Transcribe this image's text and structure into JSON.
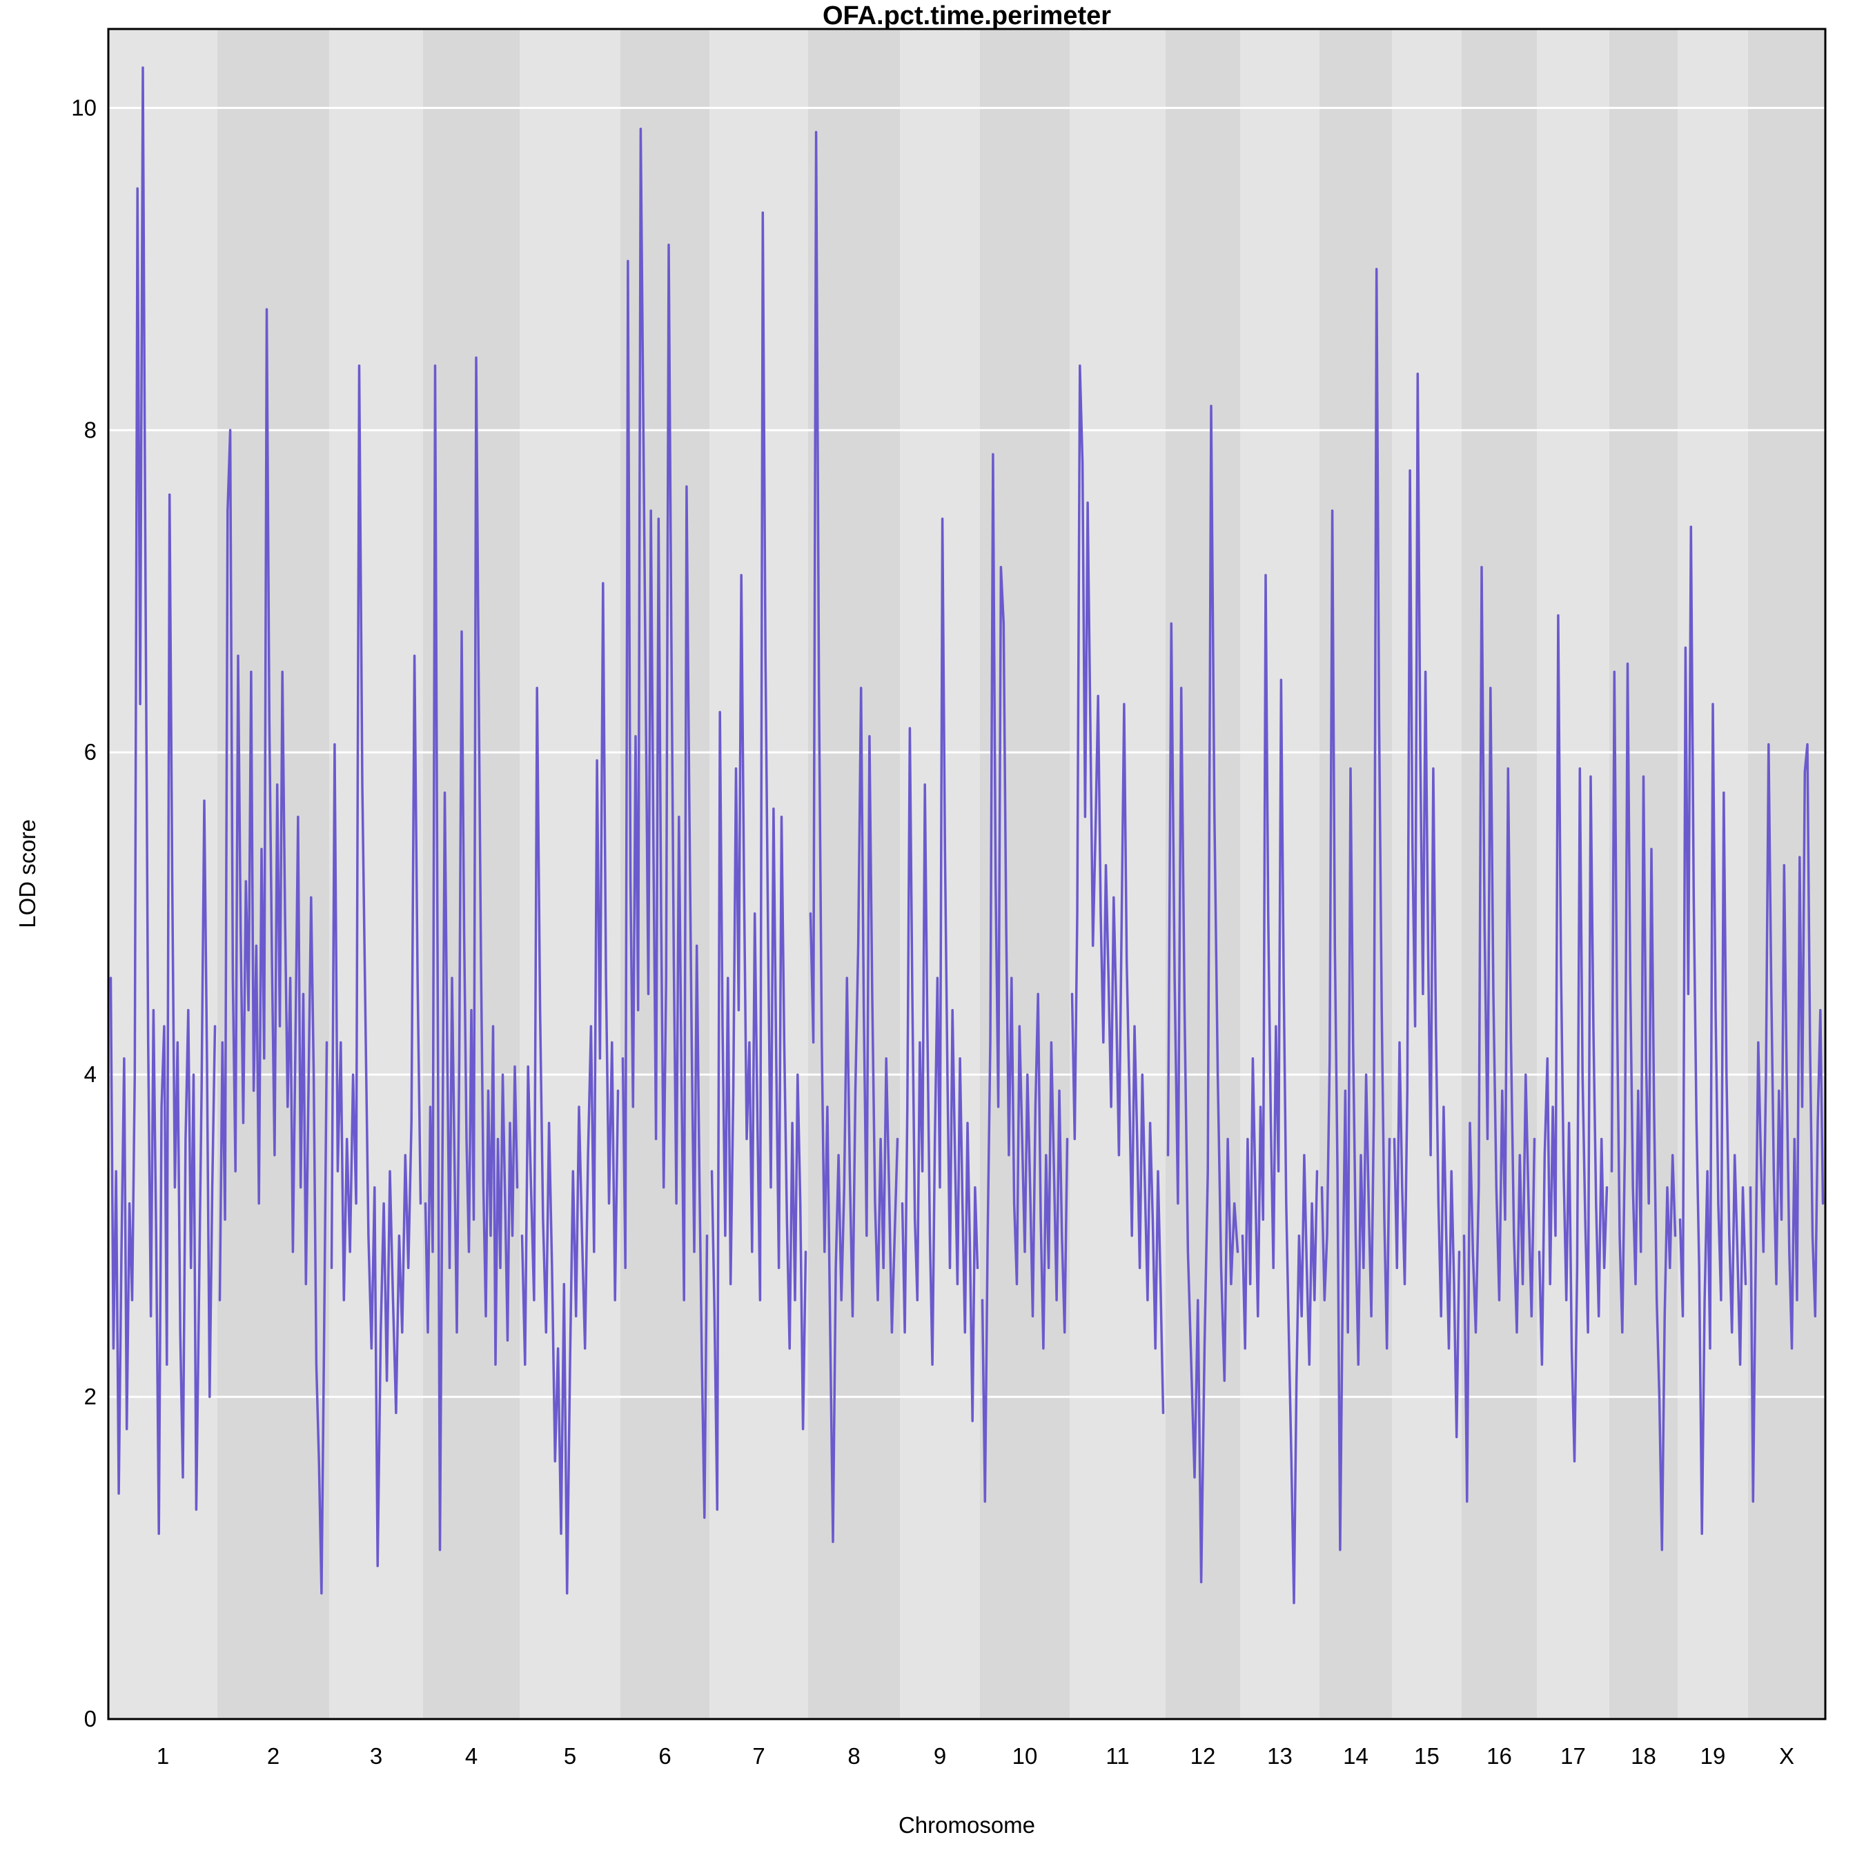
{
  "chart_data": {
    "type": "line",
    "title": "OFA.pct.time.perimeter",
    "xlabel": "Chromosome",
    "ylabel": "LOD score",
    "ylim": [
      0,
      10.49
    ],
    "yticks": [
      0,
      2,
      4,
      6,
      8,
      10
    ],
    "grid": "horizontal white lines at each y tick",
    "legend": "none",
    "line_color": "#6a5acd",
    "band_color_light": "#e4e4e4",
    "band_color_dark": "#d8d8d8",
    "x_band_order": "chromosome bands alternate light/dark starting light at chr 1",
    "chromosomes": [
      {
        "name": "1",
        "rel_width": 158,
        "lod": [
          4.6,
          2.3,
          3.4,
          1.4,
          2.9,
          4.1,
          1.8,
          3.2,
          2.6,
          4.0,
          9.5,
          6.3,
          10.25,
          7.1,
          4.2,
          2.5,
          4.4,
          3.0,
          1.15,
          3.8,
          4.3,
          2.2,
          7.6,
          5.2,
          3.3,
          4.2,
          2.4,
          1.5,
          3.6,
          4.4,
          2.8,
          4.0,
          1.3,
          2.6,
          3.9,
          5.7,
          4.1,
          2.0,
          3.3,
          4.3
        ]
      },
      {
        "name": "2",
        "rel_width": 162,
        "lod": [
          2.6,
          4.2,
          3.1,
          7.5,
          8.0,
          4.6,
          3.4,
          6.6,
          4.9,
          3.7,
          5.2,
          4.4,
          6.5,
          3.9,
          4.8,
          3.2,
          5.4,
          4.1,
          8.75,
          6.2,
          4.7,
          3.5,
          5.8,
          4.3,
          6.5,
          5.0,
          3.8,
          4.6,
          2.9,
          4.2,
          5.6,
          3.3,
          4.5,
          2.7,
          3.9,
          5.1,
          4.0,
          2.2,
          1.6,
          0.78,
          2.4,
          4.2
        ]
      },
      {
        "name": "3",
        "rel_width": 136,
        "lod": [
          2.8,
          6.05,
          3.4,
          4.2,
          2.6,
          3.6,
          2.9,
          4.0,
          3.2,
          8.4,
          5.8,
          4.4,
          3.0,
          2.3,
          3.3,
          0.95,
          2.4,
          3.2,
          2.1,
          3.4,
          2.6,
          1.9,
          3.0,
          2.4,
          3.5,
          2.8,
          3.7,
          6.6,
          4.6,
          3.2
        ]
      },
      {
        "name": "4",
        "rel_width": 140,
        "lod": [
          3.2,
          2.4,
          3.8,
          2.9,
          8.4,
          4.8,
          1.05,
          3.4,
          5.75,
          4.2,
          2.8,
          4.6,
          3.5,
          2.4,
          4.1,
          6.75,
          4.9,
          3.6,
          2.9,
          4.4,
          3.1,
          8.45,
          6.5,
          4.7,
          3.3,
          2.5,
          3.9,
          3.0,
          4.3,
          2.2,
          3.6,
          2.8,
          4.0,
          3.2,
          2.35,
          3.7,
          3.0,
          4.05,
          3.3
        ]
      },
      {
        "name": "5",
        "rel_width": 146,
        "lod": [
          3.0,
          2.2,
          4.05,
          3.3,
          2.6,
          6.4,
          4.4,
          3.1,
          2.4,
          3.7,
          2.8,
          1.6,
          2.3,
          1.15,
          2.7,
          0.78,
          2.2,
          3.4,
          2.5,
          3.8,
          3.0,
          2.3,
          3.5,
          4.3,
          2.9,
          5.95,
          4.1,
          7.05,
          4.6,
          3.2,
          4.2,
          2.6,
          3.9
        ]
      },
      {
        "name": "6",
        "rel_width": 129,
        "lod": [
          4.1,
          2.8,
          9.05,
          5.2,
          3.8,
          6.1,
          4.4,
          9.87,
          8.1,
          6.3,
          4.5,
          7.5,
          5.4,
          3.6,
          7.45,
          5.0,
          3.3,
          4.6,
          9.15,
          6.8,
          4.7,
          3.2,
          5.6,
          4.0,
          2.6,
          7.65,
          5.8,
          4.2,
          2.9,
          4.8,
          3.4,
          2.2,
          1.25,
          3.0
        ]
      },
      {
        "name": "7",
        "rel_width": 143,
        "lod": [
          3.4,
          2.5,
          1.3,
          6.25,
          4.3,
          3.0,
          4.6,
          2.7,
          3.9,
          5.9,
          4.4,
          7.1,
          5.2,
          3.6,
          4.2,
          2.9,
          5.0,
          3.7,
          2.6,
          9.35,
          6.6,
          4.8,
          3.3,
          5.65,
          4.1,
          2.8,
          5.6,
          4.2,
          3.1,
          2.3,
          3.7,
          2.6,
          4.0,
          3.2,
          1.8,
          2.9
        ]
      },
      {
        "name": "8",
        "rel_width": 133,
        "lod": [
          5.0,
          4.2,
          9.85,
          6.4,
          4.2,
          2.9,
          3.8,
          2.4,
          1.1,
          2.8,
          3.5,
          2.6,
          3.3,
          4.6,
          3.4,
          2.5,
          3.9,
          4.8,
          6.4,
          4.4,
          3.0,
          6.1,
          4.5,
          3.2,
          2.6,
          3.6,
          2.8,
          4.1,
          3.3,
          2.4,
          3.0,
          3.6
        ]
      },
      {
        "name": "9",
        "rel_width": 116,
        "lod": [
          3.2,
          2.4,
          3.8,
          6.15,
          4.5,
          3.1,
          2.6,
          4.2,
          3.4,
          5.8,
          4.3,
          3.0,
          2.2,
          3.6,
          4.6,
          3.3,
          7.45,
          5.4,
          4.0,
          2.8,
          4.4,
          3.5,
          2.7,
          4.1,
          3.2,
          2.4,
          3.7,
          2.9,
          1.85,
          3.3,
          2.8
        ]
      },
      {
        "name": "10",
        "rel_width": 130,
        "lod": [
          2.6,
          1.35,
          3.0,
          4.2,
          7.85,
          5.2,
          3.8,
          7.15,
          6.8,
          4.9,
          3.5,
          4.6,
          3.2,
          2.7,
          4.3,
          3.6,
          2.9,
          4.0,
          3.3,
          2.5,
          3.8,
          4.5,
          3.1,
          2.3,
          3.5,
          2.8,
          4.2,
          3.4,
          2.6,
          3.9,
          3.0,
          2.4,
          3.6
        ]
      },
      {
        "name": "11",
        "rel_width": 139,
        "lod": [
          4.5,
          3.6,
          5.0,
          8.4,
          7.8,
          5.6,
          7.55,
          6.2,
          4.8,
          5.5,
          6.35,
          5.0,
          4.2,
          5.3,
          4.6,
          3.8,
          5.1,
          4.4,
          3.5,
          4.9,
          6.3,
          4.7,
          3.9,
          3.0,
          4.3,
          3.6,
          2.8,
          4.0,
          3.3,
          2.6,
          3.7,
          3.1,
          2.3,
          3.4,
          2.7,
          1.9
        ]
      },
      {
        "name": "12",
        "rel_width": 108,
        "lod": [
          3.5,
          6.8,
          4.6,
          3.2,
          6.4,
          4.4,
          2.9,
          2.2,
          1.5,
          2.6,
          0.85,
          2.3,
          3.4,
          8.15,
          5.6,
          4.0,
          2.8,
          2.1,
          3.6,
          2.7,
          3.2,
          2.9
        ]
      },
      {
        "name": "13",
        "rel_width": 115,
        "lod": [
          3.0,
          2.3,
          3.6,
          2.7,
          4.1,
          3.3,
          2.5,
          3.8,
          3.1,
          7.1,
          5.0,
          3.7,
          2.8,
          4.3,
          3.4,
          6.45,
          4.6,
          3.2,
          2.4,
          1.6,
          0.72,
          2.1,
          3.0,
          2.5,
          3.5,
          2.8,
          2.2,
          3.2,
          2.6,
          3.4
        ]
      },
      {
        "name": "14",
        "rel_width": 105,
        "lod": [
          3.3,
          2.6,
          3.0,
          4.1,
          7.5,
          4.8,
          3.4,
          1.05,
          2.7,
          3.9,
          2.4,
          5.9,
          4.2,
          3.0,
          2.2,
          3.5,
          2.8,
          4.0,
          3.2,
          2.5,
          3.8,
          9.0,
          6.2,
          4.4,
          3.1,
          2.3,
          3.6
        ]
      },
      {
        "name": "15",
        "rel_width": 101,
        "lod": [
          3.6,
          2.8,
          4.2,
          3.3,
          2.7,
          3.9,
          7.75,
          5.4,
          4.3,
          8.35,
          6.0,
          4.5,
          6.5,
          4.8,
          3.5,
          5.9,
          4.3,
          3.2,
          2.5,
          3.8,
          3.0,
          2.3,
          3.4,
          2.7,
          1.75,
          2.9
        ]
      },
      {
        "name": "16",
        "rel_width": 109,
        "lod": [
          3.0,
          1.35,
          3.7,
          2.9,
          2.4,
          3.3,
          7.15,
          4.9,
          3.6,
          6.4,
          4.5,
          3.3,
          2.6,
          3.9,
          3.1,
          5.9,
          4.2,
          3.0,
          2.4,
          3.5,
          2.7,
          4.0,
          3.2,
          2.5,
          3.6
        ]
      },
      {
        "name": "17",
        "rel_width": 105,
        "lod": [
          2.9,
          2.2,
          3.5,
          4.1,
          2.7,
          3.8,
          3.0,
          6.85,
          4.7,
          3.4,
          2.6,
          3.7,
          2.3,
          1.6,
          2.8,
          5.9,
          4.0,
          3.1,
          2.4,
          5.85,
          4.3,
          3.2,
          2.5,
          3.6,
          2.8,
          3.3
        ]
      },
      {
        "name": "18",
        "rel_width": 99,
        "lod": [
          3.4,
          6.5,
          4.4,
          3.0,
          2.4,
          3.6,
          6.55,
          4.6,
          3.3,
          2.7,
          3.9,
          2.9,
          5.85,
          4.1,
          3.2,
          5.4,
          3.8,
          2.6,
          2.0,
          1.05,
          2.5,
          3.3,
          2.8,
          3.5,
          3.0
        ]
      },
      {
        "name": "19",
        "rel_width": 102,
        "lod": [
          3.1,
          2.5,
          6.65,
          4.5,
          7.4,
          5.1,
          3.7,
          2.8,
          1.15,
          2.6,
          3.4,
          2.3,
          6.3,
          4.4,
          3.2,
          2.6,
          5.75,
          4.0,
          3.0,
          2.4,
          3.5,
          2.9,
          2.2,
          3.3,
          2.7
        ]
      },
      {
        "name": "X",
        "rel_width": 112,
        "lod": [
          3.3,
          1.35,
          2.8,
          4.2,
          3.5,
          2.9,
          4.0,
          6.05,
          4.6,
          3.4,
          2.7,
          3.9,
          3.1,
          5.3,
          4.0,
          2.9,
          2.3,
          3.6,
          2.6,
          5.35,
          3.8,
          5.88,
          6.05,
          4.2,
          3.0,
          2.5,
          3.7,
          4.4,
          3.2
        ]
      }
    ]
  }
}
